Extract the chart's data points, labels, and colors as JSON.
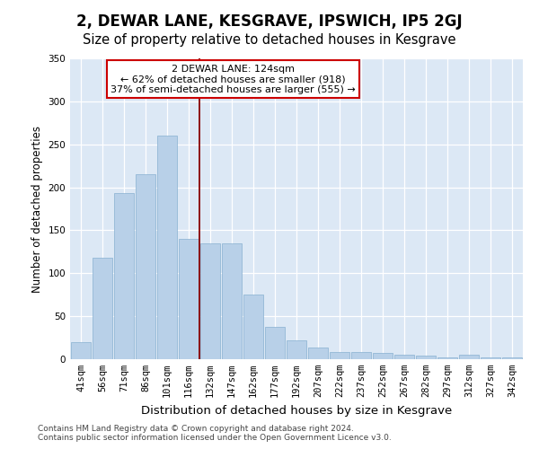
{
  "title": "2, DEWAR LANE, KESGRAVE, IPSWICH, IP5 2GJ",
  "subtitle": "Size of property relative to detached houses in Kesgrave",
  "xlabel": "Distribution of detached houses by size in Kesgrave",
  "ylabel": "Number of detached properties",
  "categories": [
    "41sqm",
    "56sqm",
    "71sqm",
    "86sqm",
    "101sqm",
    "116sqm",
    "132sqm",
    "147sqm",
    "162sqm",
    "177sqm",
    "192sqm",
    "207sqm",
    "222sqm",
    "237sqm",
    "252sqm",
    "267sqm",
    "282sqm",
    "297sqm",
    "312sqm",
    "327sqm",
    "342sqm"
  ],
  "values": [
    20,
    118,
    193,
    215,
    260,
    140,
    135,
    135,
    75,
    38,
    22,
    14,
    8,
    8,
    7,
    5,
    4,
    2,
    5,
    2,
    2
  ],
  "bar_color": "#b8d0e8",
  "bar_edge_color": "#88b0d0",
  "vline_index": 5.5,
  "vline_color": "#880000",
  "annotation_text": "2 DEWAR LANE: 124sqm\n← 62% of detached houses are smaller (918)\n37% of semi-detached houses are larger (555) →",
  "annotation_box_facecolor": "#ffffff",
  "annotation_box_edgecolor": "#cc0000",
  "ylim_max": 350,
  "yticks": [
    0,
    50,
    100,
    150,
    200,
    250,
    300,
    350
  ],
  "bg_color": "#dce8f5",
  "footer": "Contains HM Land Registry data © Crown copyright and database right 2024.\nContains public sector information licensed under the Open Government Licence v3.0.",
  "title_fontsize": 12,
  "subtitle_fontsize": 10.5,
  "xlabel_fontsize": 9.5,
  "ylabel_fontsize": 8.5,
  "tick_fontsize": 7.5,
  "footer_fontsize": 6.5,
  "annot_fontsize": 8
}
